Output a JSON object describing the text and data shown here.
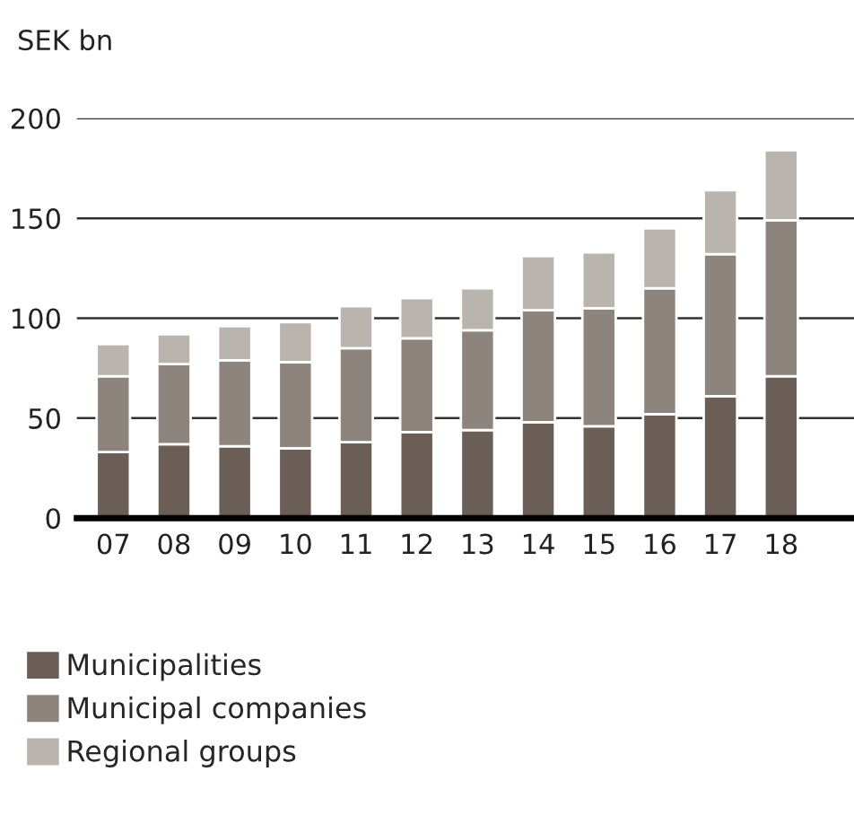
{
  "chart_data": {
    "type": "bar",
    "stacked": true,
    "ylabel": "SEK bn",
    "categories": [
      "07",
      "08",
      "09",
      "10",
      "11",
      "12",
      "13",
      "14",
      "15",
      "16",
      "17",
      "18"
    ],
    "series": [
      {
        "name": "Municipalities",
        "color": "#6b5e56",
        "values": [
          33,
          37,
          36,
          35,
          38,
          43,
          44,
          48,
          46,
          52,
          61,
          71
        ]
      },
      {
        "name": "Municipal companies",
        "color": "#8d847e",
        "values": [
          38,
          40,
          43,
          43,
          47,
          47,
          50,
          56,
          59,
          63,
          71,
          78
        ]
      },
      {
        "name": "Regional groups",
        "color": "#b9b4ad",
        "values": [
          16,
          15,
          17,
          20,
          21,
          20,
          21,
          27,
          28,
          30,
          32,
          35
        ]
      }
    ],
    "ylim": [
      0,
      200
    ],
    "yticks": [
      0,
      50,
      100,
      150,
      200
    ],
    "grid": "y",
    "legend": "bottom"
  }
}
